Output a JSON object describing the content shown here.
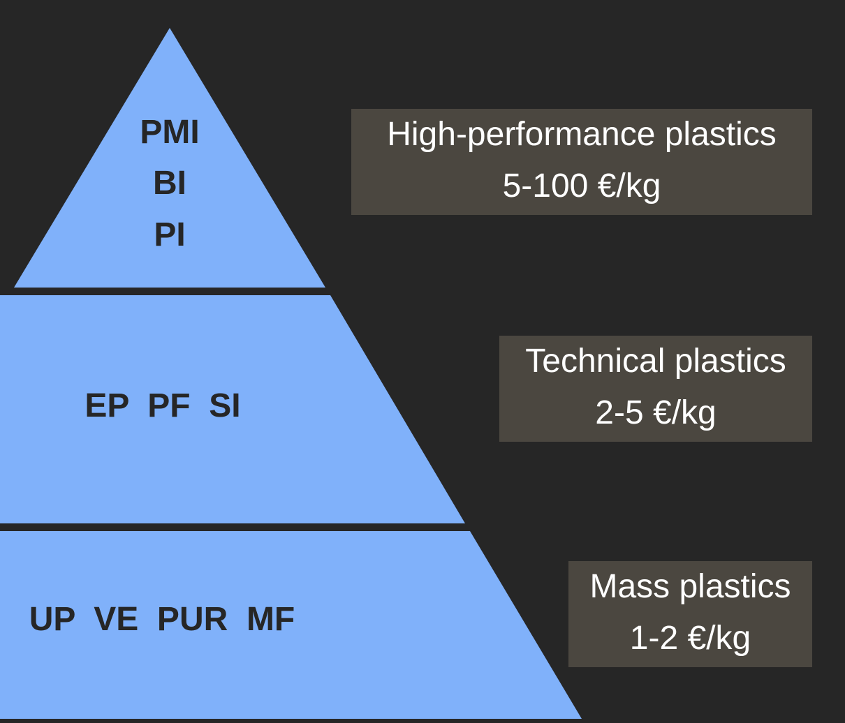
{
  "colors": {
    "background": "#262626",
    "pyramid_fill": "#80b1fa",
    "tier_text": "#262626",
    "label_box": "#4b4740",
    "label_text": "#ffffff"
  },
  "tiers": [
    {
      "level": "top",
      "polymer_lines": [
        "PMI",
        "BI",
        "PI"
      ],
      "category": "High-performance plastics",
      "price": "5-100 €/kg"
    },
    {
      "level": "middle",
      "polymer_line": "EP  PF  SI",
      "category": "Technical plastics",
      "price": "2-5 €/kg"
    },
    {
      "level": "bottom",
      "polymer_line": "UP  VE  PUR  MF",
      "category": "Mass plastics",
      "price": "1-2 €/kg"
    }
  ]
}
